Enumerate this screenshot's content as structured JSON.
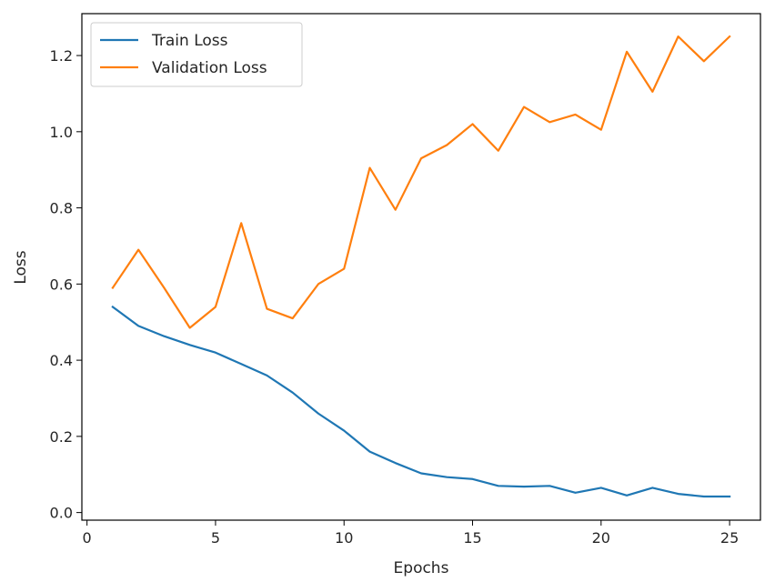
{
  "chart_data": {
    "type": "line",
    "title": "",
    "xlabel": "Epochs",
    "ylabel": "Loss",
    "xlim": [
      -0.2,
      26.2
    ],
    "ylim": [
      -0.02,
      1.31
    ],
    "xticks": [
      0,
      5,
      10,
      15,
      20,
      25
    ],
    "yticks": [
      0.0,
      0.2,
      0.4,
      0.6,
      0.8,
      1.0,
      1.2
    ],
    "xtick_labels": [
      "0",
      "5",
      "10",
      "15",
      "20",
      "25"
    ],
    "ytick_labels": [
      "0.0",
      "0.2",
      "0.4",
      "0.6",
      "0.8",
      "1.0",
      "1.2"
    ],
    "grid": false,
    "legend_position": "top-left",
    "x": [
      1,
      2,
      3,
      4,
      5,
      6,
      7,
      8,
      9,
      10,
      11,
      12,
      13,
      14,
      15,
      16,
      17,
      18,
      19,
      20,
      21,
      22,
      23,
      24,
      25
    ],
    "series": [
      {
        "name": "Train Loss",
        "color": "#1f77b4",
        "values": [
          0.54,
          0.49,
          0.463,
          0.44,
          0.42,
          0.39,
          0.36,
          0.315,
          0.26,
          0.215,
          0.16,
          0.13,
          0.103,
          0.093,
          0.088,
          0.07,
          0.068,
          0.07,
          0.052,
          0.065,
          0.045,
          0.065,
          0.049,
          0.042,
          0.042
        ]
      },
      {
        "name": "Validation Loss",
        "color": "#ff7f0e",
        "values": [
          0.59,
          0.69,
          0.59,
          0.485,
          0.54,
          0.76,
          0.535,
          0.51,
          0.6,
          0.64,
          0.905,
          0.795,
          0.93,
          0.965,
          1.02,
          0.95,
          1.065,
          1.025,
          1.045,
          1.005,
          1.21,
          1.105,
          1.25,
          1.185,
          1.25
        ]
      }
    ]
  }
}
